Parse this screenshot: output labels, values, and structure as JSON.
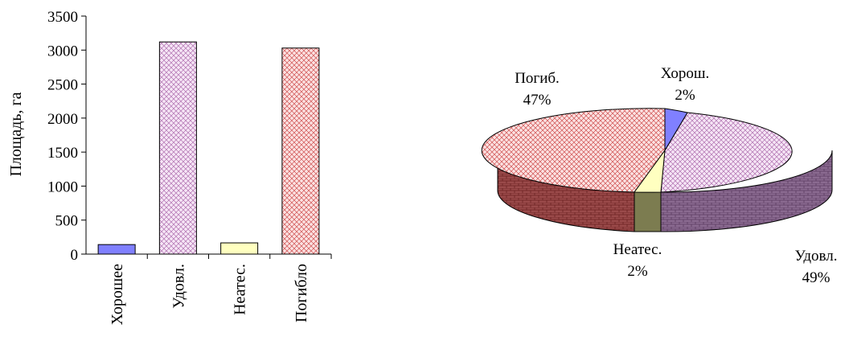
{
  "chart_data": [
    {
      "type": "bar",
      "title": "",
      "xlabel": "",
      "ylabel": "Площадь, га",
      "ylim": [
        0,
        3500
      ],
      "yticks": [
        "0",
        "500",
        "1000",
        "1500",
        "2000",
        "2500",
        "3000",
        "3500"
      ],
      "grid": false,
      "categories": [
        "Хорошее",
        "Удовл.",
        "Неатес.",
        "Погибло"
      ],
      "values": [
        140,
        3120,
        165,
        3030
      ],
      "colors": [
        "#8080ff",
        "#f2d6f2",
        "#ffffc0",
        "#f7c8c8"
      ]
    },
    {
      "type": "pie",
      "title": "",
      "slices": [
        {
          "label": "Хорош.",
          "value": 2,
          "pct": "2%",
          "color": "#8080ff"
        },
        {
          "label": "Удовл.",
          "value": 49,
          "pct": "49%",
          "color": "#e8c4ec"
        },
        {
          "label": "Неатес.",
          "value": 2,
          "pct": "2%",
          "color": "#ffffc0"
        },
        {
          "label": "Погиб.",
          "value": 47,
          "pct": "47%",
          "color": "#f7c8c8"
        }
      ]
    }
  ]
}
